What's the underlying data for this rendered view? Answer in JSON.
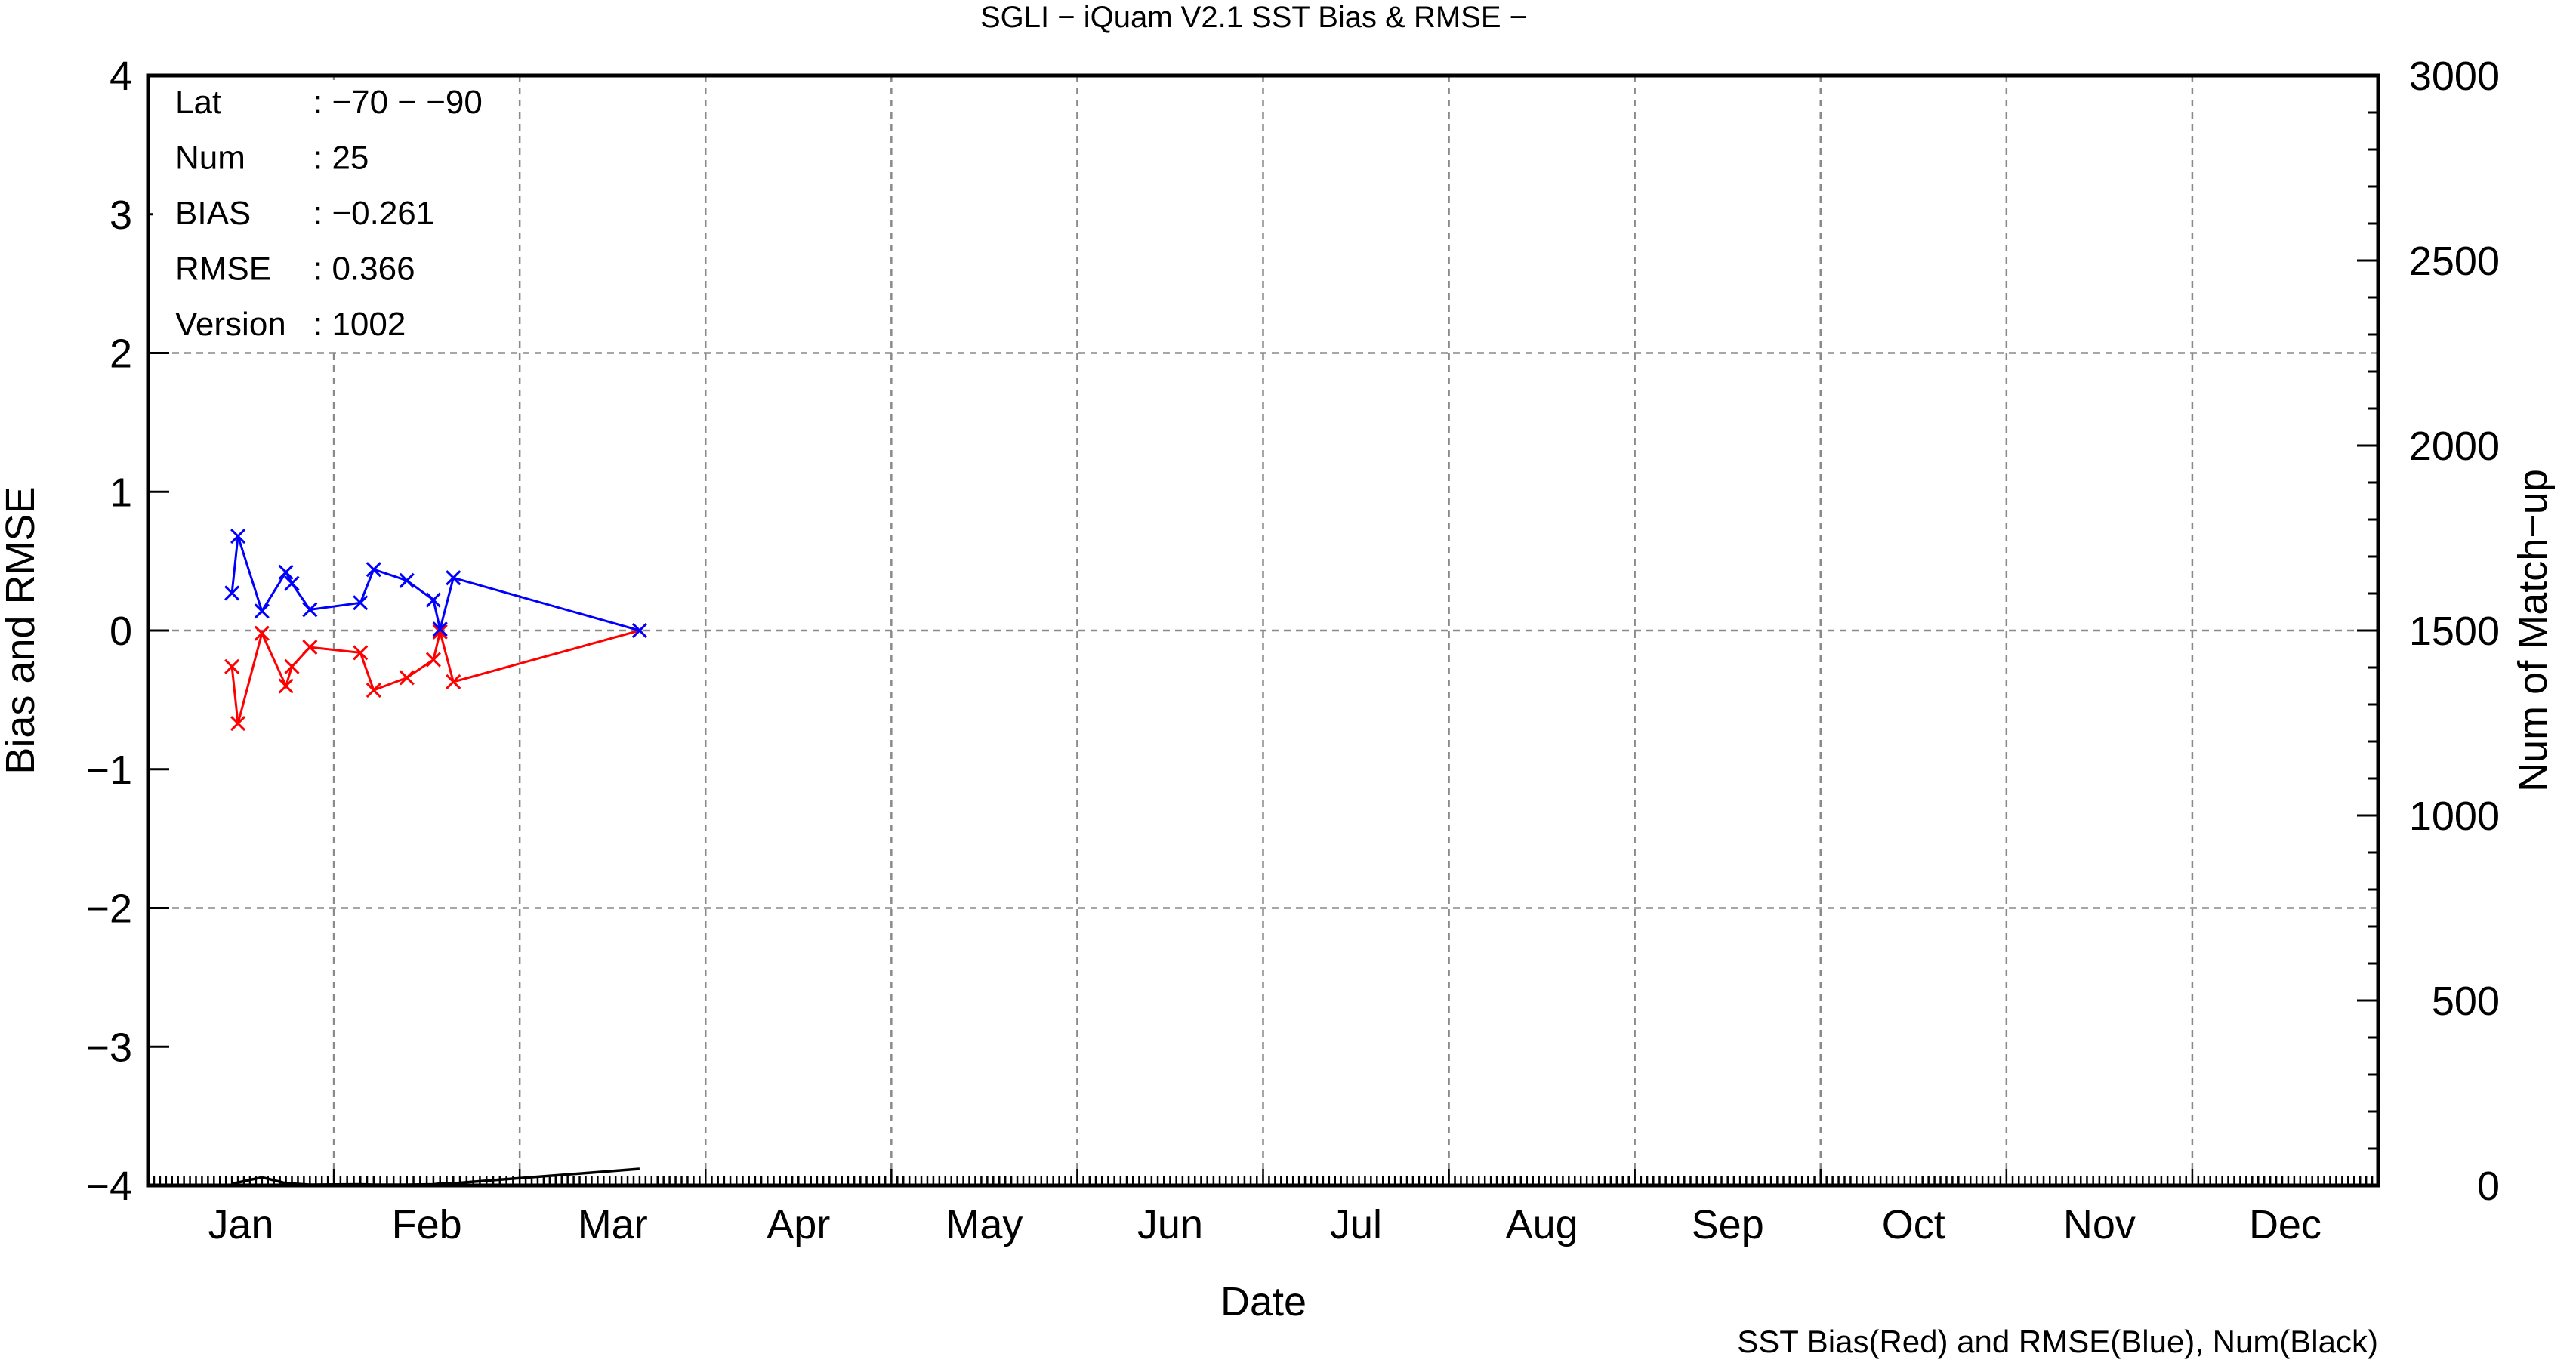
{
  "chart_data": {
    "type": "line",
    "title": "SGLI − iQuam V2.1 SST Bias & RMSE  −",
    "xlabel": "Date",
    "ylabel": "Bias and RMSE",
    "y2label": "Num of Match−up",
    "footnote": "SST Bias(Red) and RMSE(Blue), Num(Black)",
    "x_ticks": [
      "Jan",
      "Feb",
      "Mar",
      "Apr",
      "May",
      "Jun",
      "Jul",
      "Aug",
      "Sep",
      "Oct",
      "Nov",
      "Dec"
    ],
    "y_ticks": [
      "4",
      "3",
      "2",
      "1",
      "0",
      "−1",
      "−2",
      "−3",
      "−4"
    ],
    "y2_ticks": [
      "3000",
      "2500",
      "2000",
      "1500",
      "1000",
      "500",
      "0"
    ],
    "ylim": [
      -4,
      4
    ],
    "y2lim": [
      0,
      3000
    ],
    "grid": true,
    "x_unit": "day of year",
    "series": [
      {
        "name": "SST Bias",
        "color": "#ff0000",
        "marker": "x",
        "axis": "left",
        "x": [
          14,
          15,
          19,
          23,
          24,
          27,
          35,
          37,
          42,
          46,
          47,
          49,
          79
        ],
        "y": [
          -0.26,
          -0.67,
          -0.02,
          -0.4,
          -0.26,
          -0.12,
          -0.16,
          -0.43,
          -0.34,
          -0.21,
          -0.01,
          -0.37,
          0.0
        ]
      },
      {
        "name": "RMSE",
        "color": "#0000ff",
        "marker": "x",
        "axis": "left",
        "x": [
          14,
          15,
          19,
          23,
          24,
          27,
          35,
          37,
          42,
          46,
          47,
          49,
          79
        ],
        "y": [
          0.27,
          0.68,
          0.14,
          0.42,
          0.34,
          0.15,
          0.2,
          0.44,
          0.36,
          0.22,
          0.01,
          0.38,
          0.0
        ]
      },
      {
        "name": "Num",
        "color": "#000000",
        "marker": "none",
        "axis": "right",
        "x": [
          14,
          15,
          19,
          23,
          24,
          27,
          35,
          37,
          42,
          46,
          47,
          49,
          79
        ],
        "y": [
          4,
          8,
          22,
          6,
          5,
          2,
          3,
          2,
          2,
          3,
          5,
          6,
          45
        ]
      }
    ]
  },
  "stats": [
    {
      "label": "Lat",
      "value": ": −70 − −90"
    },
    {
      "label": "Num",
      "value": ": 25"
    },
    {
      "label": "BIAS",
      "value": ": −0.261"
    },
    {
      "label": "RMSE",
      "value": ": 0.366"
    },
    {
      "label": "Version",
      "value": ": 1002"
    }
  ]
}
